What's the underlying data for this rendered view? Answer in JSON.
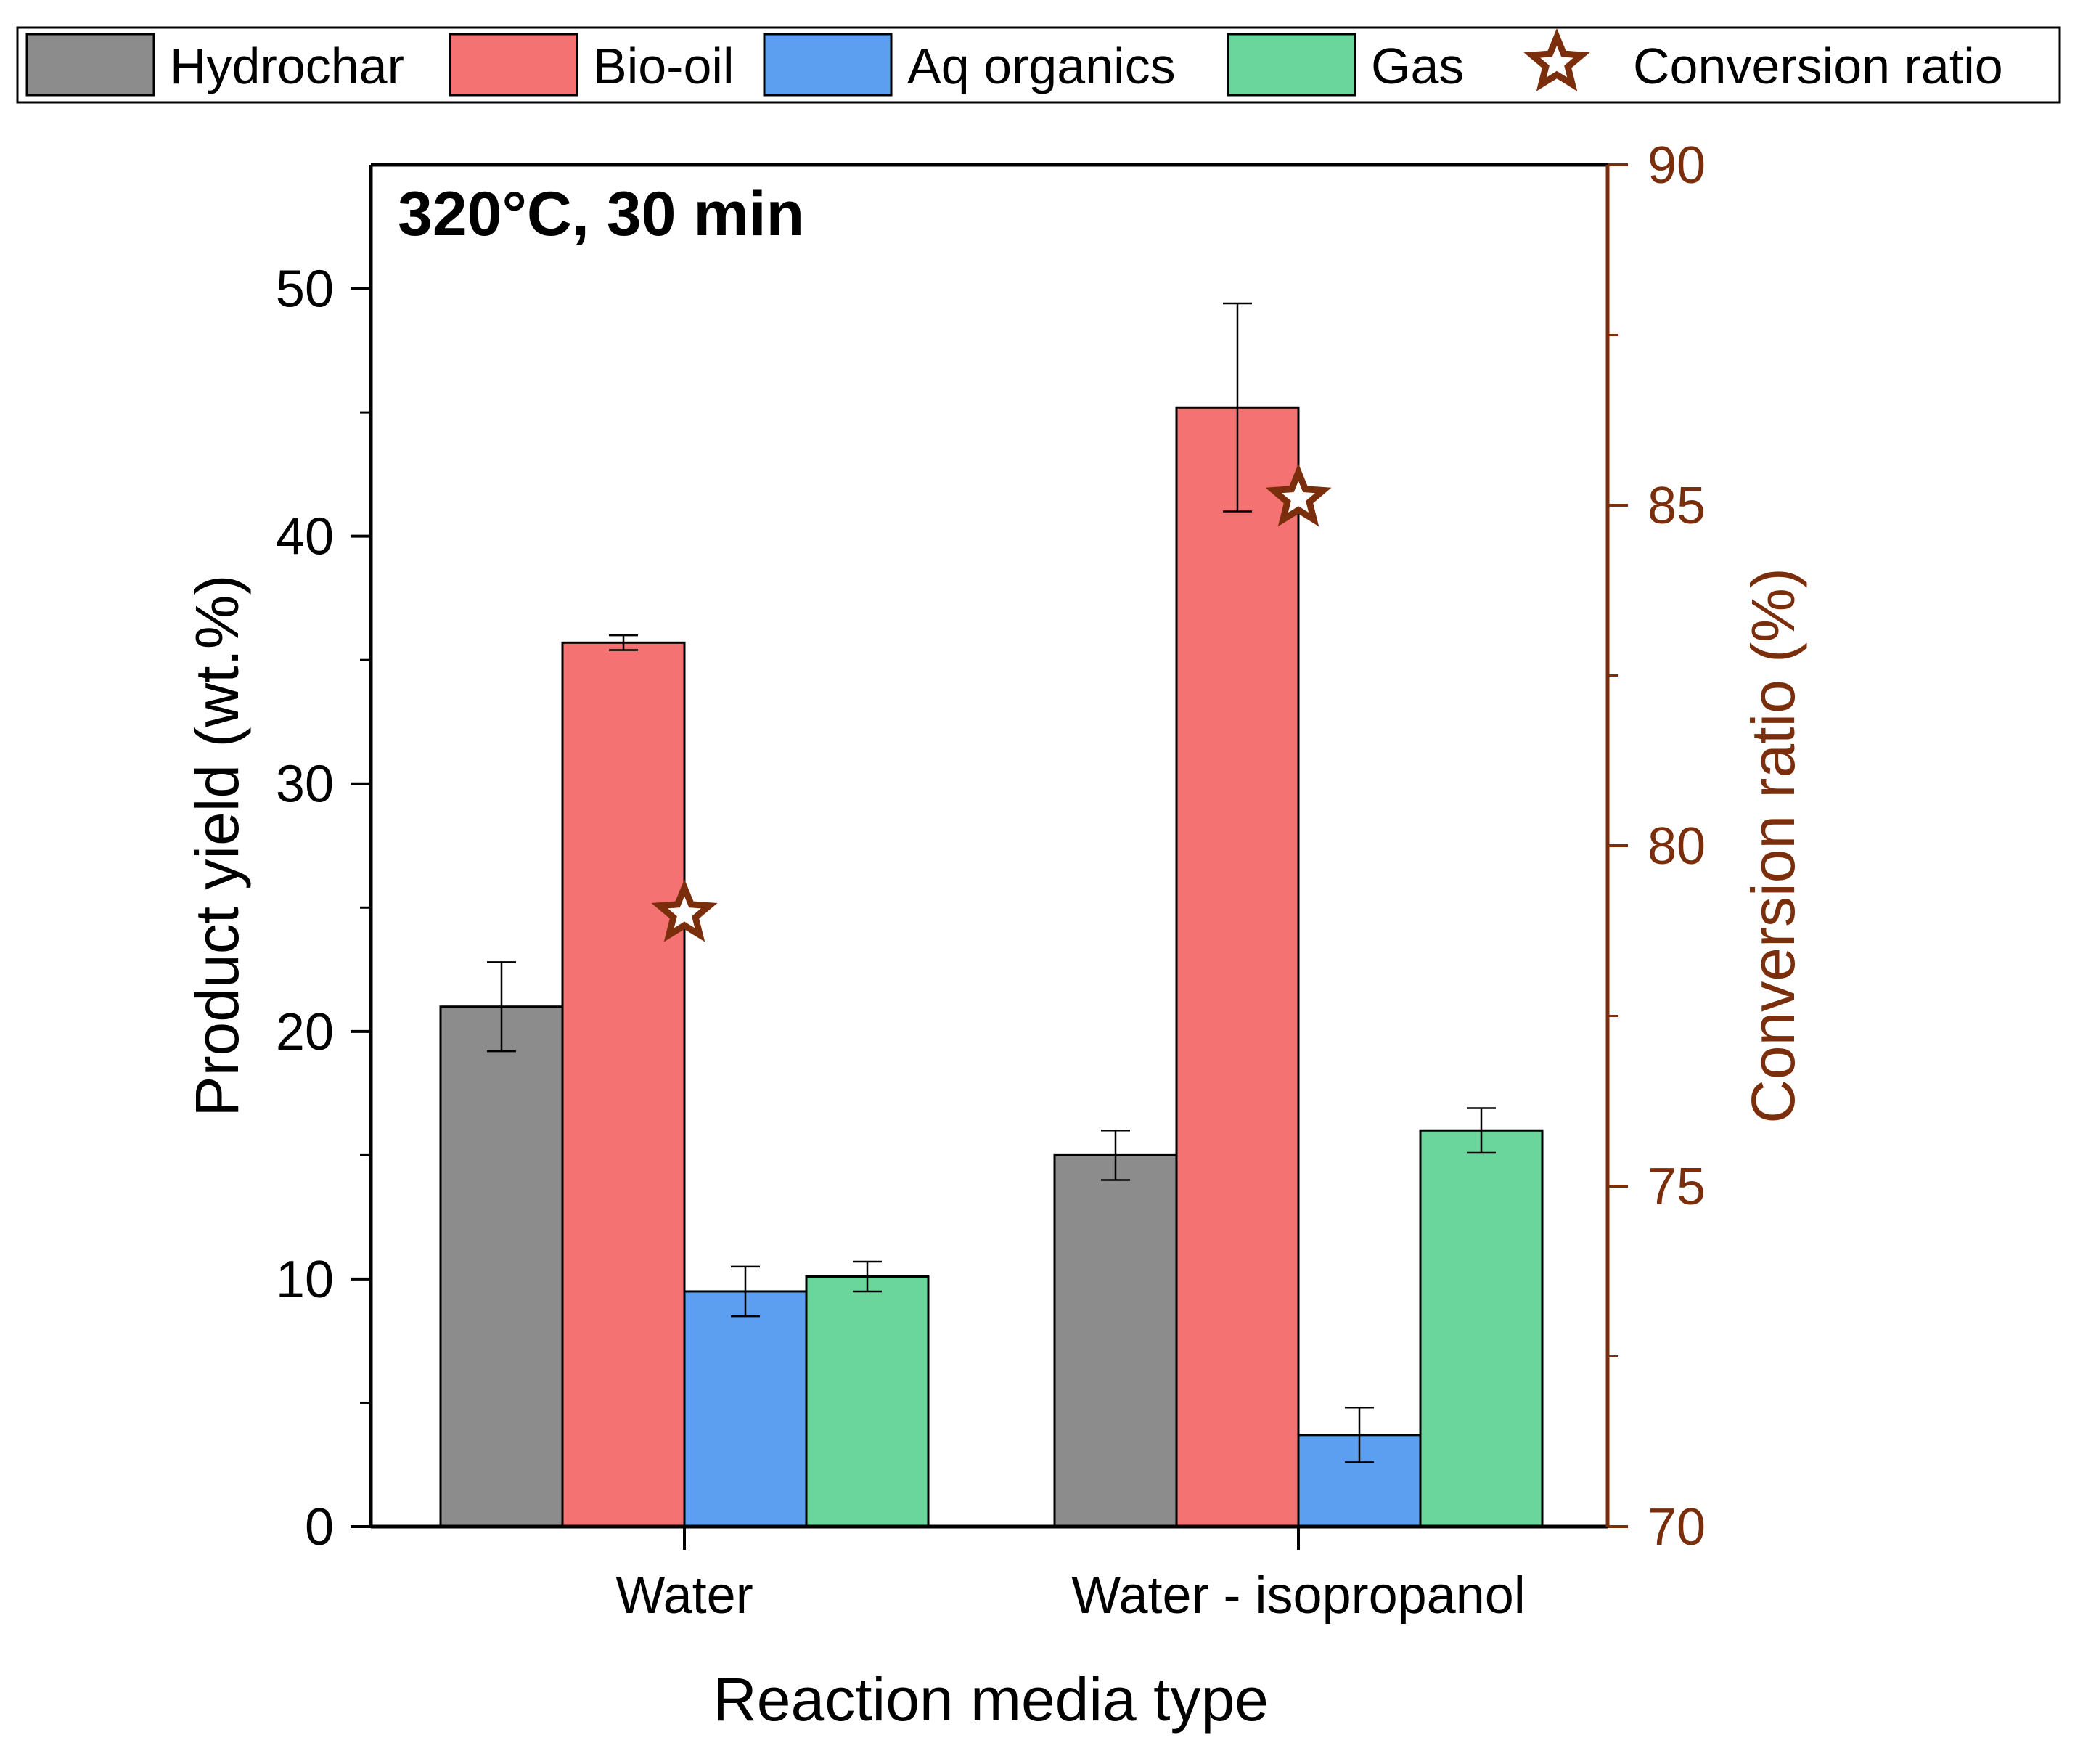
{
  "chart_data": {
    "type": "bar",
    "annotation": "320°C, 30 min",
    "xlabel": "Reaction media type",
    "ylabel": "Product yield (wt.%)",
    "y2label": "Conversion ratio (%)",
    "categories": [
      "Water",
      "Water - isopropanol"
    ],
    "ylim": [
      0,
      55
    ],
    "yticks": [
      0,
      10,
      20,
      30,
      40,
      50
    ],
    "y2lim": [
      70,
      90
    ],
    "y2ticks": [
      70,
      75,
      80,
      85,
      90
    ],
    "legend_position": "top",
    "grid": false,
    "series": [
      {
        "name": "Hydrochar",
        "values": [
          21.0,
          15.0
        ],
        "errors": [
          1.8,
          1.0
        ],
        "color": "#8c8c8c"
      },
      {
        "name": "Bio-oil",
        "values": [
          35.7,
          45.2
        ],
        "errors": [
          0.3,
          4.2
        ],
        "color": "#f47272"
      },
      {
        "name": "Aq organics",
        "values": [
          9.5,
          3.7
        ],
        "errors": [
          1.0,
          1.1
        ],
        "color": "#5c9eef"
      },
      {
        "name": "Gas",
        "values": [
          10.1,
          16.0
        ],
        "errors": [
          0.6,
          0.9
        ],
        "color": "#6ad69b"
      }
    ],
    "secondary_series": {
      "name": "Conversion ratio",
      "type": "scatter",
      "marker": "star",
      "axis": "right",
      "values": [
        79.0,
        85.1
      ],
      "color": "#7a2e0b"
    }
  }
}
